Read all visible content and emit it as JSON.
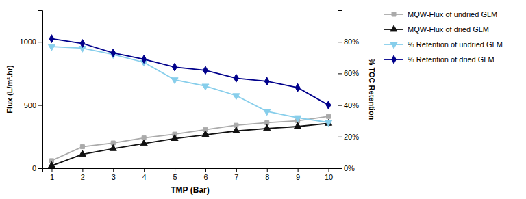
{
  "chart_data": {
    "type": "line",
    "x": [
      1,
      2,
      3,
      4,
      5,
      6,
      7,
      8,
      9,
      10
    ],
    "xlabel": "TMP (Bar)",
    "ylabel": "Flux (L/m².hr)",
    "y2label": "% TOC Retention",
    "xlim": [
      0.7,
      10.3
    ],
    "xticks": [
      1,
      2,
      3,
      4,
      5,
      6,
      7,
      8,
      9,
      10
    ],
    "ylim": [
      0,
      1250
    ],
    "yticks": [
      0,
      500,
      1000
    ],
    "y2lim": [
      0,
      100
    ],
    "y2ticks": [
      {
        "value": 0,
        "label": "0%"
      },
      {
        "value": 20,
        "label": "20%"
      },
      {
        "value": 40,
        "label": "40%"
      },
      {
        "value": 60,
        "label": "60%"
      },
      {
        "value": 80,
        "label": "80%"
      }
    ],
    "legend": "right",
    "series": [
      {
        "name": "MQW-Flux of undried GLM",
        "color": "#aaaaaa",
        "marker": "square",
        "values": [
          60,
          170,
          200,
          240,
          270,
          305,
          340,
          360,
          375,
          410
        ]
      },
      {
        "name": "MQW-Flux of dried GLM",
        "color": "#111111",
        "marker": "triangle-up",
        "values": [
          20,
          110,
          155,
          195,
          235,
          265,
          295,
          315,
          330,
          355
        ]
      },
      {
        "name": "% Retention of undried GLM",
        "color": "#87CEEB",
        "marker": "triangle-down",
        "axis": "y2",
        "values": [
          77,
          76,
          72,
          67,
          56,
          52,
          46,
          36,
          32,
          29
        ]
      },
      {
        "name": "% Retention of dried GLM",
        "color": "#00008B",
        "marker": "diamond",
        "axis": "y2",
        "values": [
          82,
          79,
          73,
          69,
          64,
          62,
          57,
          55,
          51,
          40
        ]
      }
    ]
  }
}
